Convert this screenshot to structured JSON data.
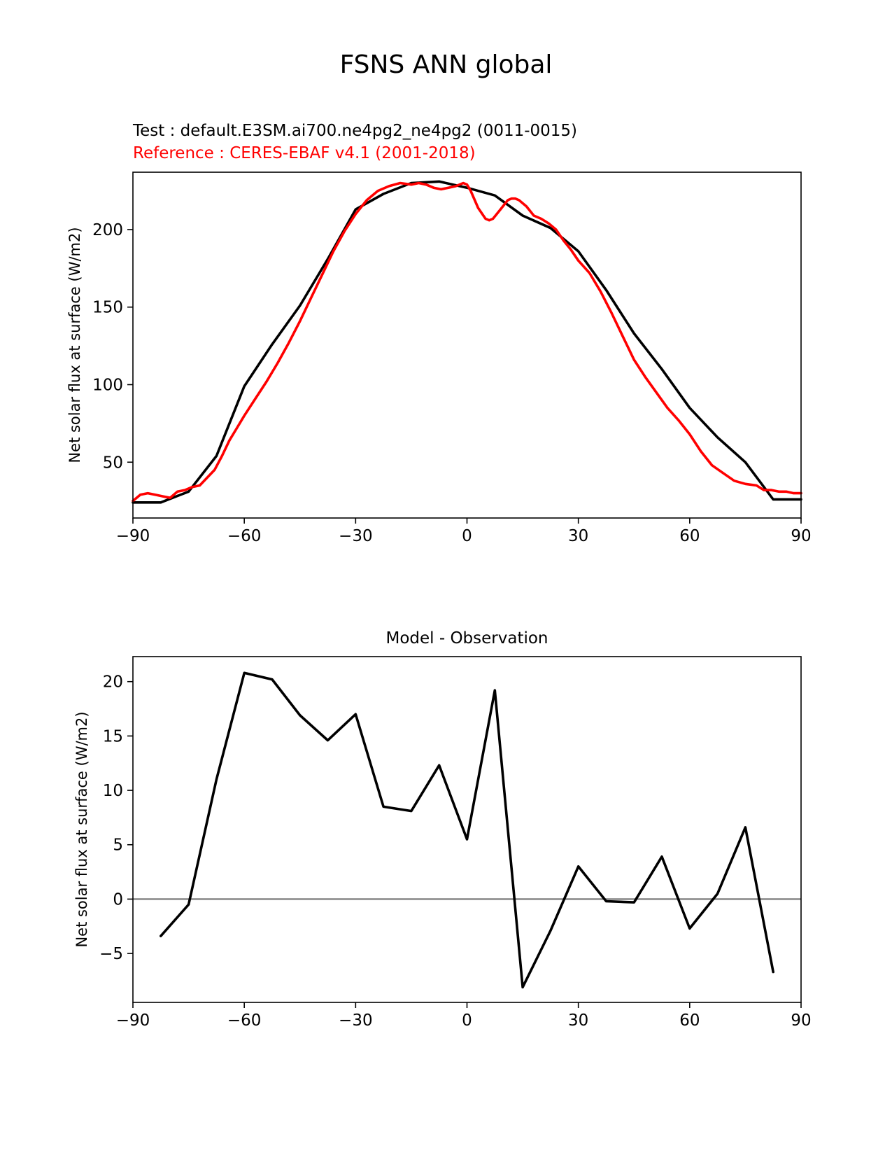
{
  "figure": {
    "title": "FSNS ANN global",
    "test_label": "Test : default.E3SM.ai700.ne4pg2_ne4pg2 (0011-0015)",
    "reference_label": "Reference : CERES-EBAF v4.1 (2001-2018)"
  },
  "chart_data": [
    {
      "type": "line",
      "title": "",
      "xlabel": "",
      "ylabel": "Net solar flux at surface (W/m2)",
      "xlim": [
        -90,
        90
      ],
      "ylim": [
        14,
        237
      ],
      "xticks": [
        -90,
        -60,
        -30,
        0,
        30,
        60,
        90
      ],
      "xtick_labels": [
        "−90",
        "−60",
        "−30",
        "0",
        "30",
        "60",
        "90"
      ],
      "yticks": [
        50,
        100,
        150,
        200
      ],
      "ytick_labels": [
        "50",
        "100",
        "150",
        "200"
      ],
      "grid": false,
      "legend": "none",
      "series": [
        {
          "color": "#000000",
          "x": [
            -90,
            -82.5,
            -75,
            -67.5,
            -60,
            -52.5,
            -45,
            -37.5,
            -30,
            -22.5,
            -15,
            -7.5,
            0,
            7.5,
            15,
            22.5,
            30,
            37.5,
            45,
            52.5,
            60,
            67.5,
            75,
            82.5,
            90
          ],
          "y": [
            24,
            24,
            31,
            54,
            99,
            126,
            151,
            181,
            213,
            223,
            230,
            231,
            227,
            222,
            209,
            201,
            186,
            161,
            133,
            110,
            85,
            66,
            50,
            26,
            26
          ]
        },
        {
          "color": "#ff0000",
          "x": [
            -90,
            -88,
            -86,
            -84,
            -82,
            -80,
            -78,
            -76,
            -74,
            -72,
            -70,
            -68,
            -66,
            -64,
            -62,
            -60,
            -57,
            -54,
            -51,
            -48,
            -45,
            -42,
            -39,
            -36,
            -33,
            -30,
            -27,
            -24,
            -21,
            -18,
            -15,
            -13,
            -11,
            -9,
            -7,
            -5,
            -3,
            -1,
            0,
            1,
            3,
            5,
            6,
            7,
            9,
            11,
            12,
            13,
            14,
            16,
            18,
            20,
            22,
            24,
            26,
            28,
            30,
            33,
            36,
            39,
            42,
            45,
            48,
            51,
            54,
            57,
            60,
            63,
            66,
            69,
            72,
            75,
            78,
            80,
            82,
            84,
            86,
            88,
            90
          ],
          "y": [
            25,
            29,
            30,
            29,
            28,
            27,
            31,
            32,
            34,
            35,
            40,
            45,
            54,
            64,
            72,
            80,
            91,
            102,
            114,
            127,
            141,
            156,
            171,
            186,
            199,
            210,
            219,
            225,
            228,
            230,
            229,
            230,
            229,
            227,
            226,
            227,
            228,
            230,
            229,
            225,
            214,
            207,
            206,
            207,
            213,
            219,
            220,
            220,
            219,
            215,
            209,
            207,
            204,
            200,
            193,
            187,
            180,
            172,
            160,
            146,
            131,
            116,
            105,
            95,
            85,
            77,
            68,
            57,
            48,
            43,
            38,
            36,
            35,
            32,
            32,
            31,
            31,
            30,
            30
          ]
        }
      ]
    },
    {
      "type": "line",
      "title": "Model - Observation",
      "xlabel": "",
      "ylabel": "Net solar flux at surface (W/m2)",
      "xlim": [
        -90,
        90
      ],
      "ylim": [
        -9.5,
        22.3
      ],
      "xticks": [
        -90,
        -60,
        -30,
        0,
        30,
        60,
        90
      ],
      "xtick_labels": [
        "−90",
        "−60",
        "−30",
        "0",
        "30",
        "60",
        "90"
      ],
      "yticks": [
        -5,
        0,
        5,
        10,
        15,
        20
      ],
      "ytick_labels": [
        "−5",
        "0",
        "5",
        "10",
        "15",
        "20"
      ],
      "grid": false,
      "legend": "none",
      "zero_line_color": "#808080",
      "series": [
        {
          "color": "#000000",
          "x": [
            -82.5,
            -75,
            -67.5,
            -60,
            -52.5,
            -45,
            -37.5,
            -30,
            -22.5,
            -15,
            -7.5,
            0,
            7.5,
            15,
            22.5,
            30,
            37.5,
            45,
            52.5,
            60,
            67.5,
            75,
            82.5
          ],
          "y": [
            -3.4,
            -0.5,
            11.0,
            20.8,
            20.2,
            16.9,
            14.6,
            17.0,
            8.5,
            8.1,
            12.3,
            5.5,
            19.2,
            -8.1,
            -2.9,
            3.0,
            -0.2,
            -0.3,
            3.9,
            -2.7,
            0.5,
            6.6,
            -6.7
          ]
        }
      ]
    }
  ]
}
